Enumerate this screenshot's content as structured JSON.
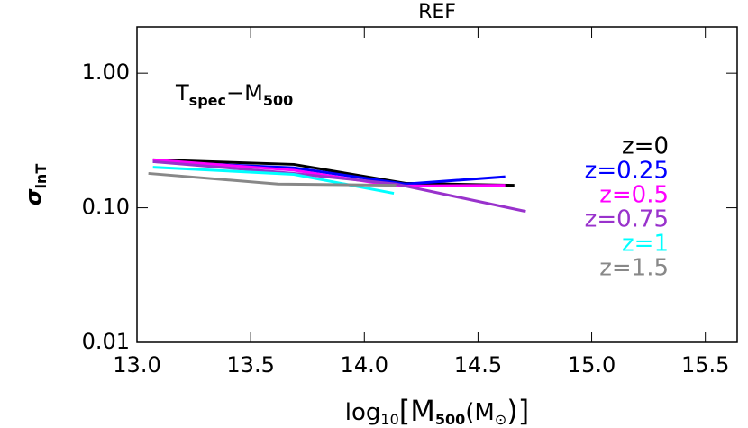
{
  "chart_data": {
    "type": "line",
    "title": "REF",
    "annotation": {
      "main": "T",
      "sub": "spec",
      "rest": "−M",
      "sub2": "500"
    },
    "ylabel": {
      "main": "σ",
      "sub": "lnT"
    },
    "xlabel": {
      "a": "log",
      "b": "10",
      "c": "[M",
      "d": "500",
      "e": "(M",
      "f": "⊙",
      "g": ")]"
    },
    "xlim": [
      13.0,
      15.64
    ],
    "ylim": [
      0.01,
      2.2
    ],
    "log_y": true,
    "xticks": [
      {
        "value": 13.0,
        "label": "13.0"
      },
      {
        "value": 13.5,
        "label": "13.5"
      },
      {
        "value": 14.0,
        "label": "14.0"
      },
      {
        "value": 14.5,
        "label": "14.5"
      },
      {
        "value": 15.0,
        "label": "15.0"
      },
      {
        "value": 15.5,
        "label": "15.5"
      }
    ],
    "yticks": [
      {
        "value": 0.01,
        "label": "0.01"
      },
      {
        "value": 0.1,
        "label": "0.10"
      },
      {
        "value": 1,
        "label": "1.00"
      }
    ],
    "series": [
      {
        "name": "z=0",
        "color": "#000000",
        "x": [
          13.07,
          13.69,
          14.18,
          14.66
        ],
        "values": [
          0.227,
          0.21,
          0.152,
          0.147
        ]
      },
      {
        "name": "z=0.25",
        "color": "#0000ff",
        "x": [
          13.07,
          13.69,
          14.18,
          14.62
        ],
        "values": [
          0.22,
          0.198,
          0.15,
          0.17
        ]
      },
      {
        "name": "z=0.5",
        "color": "#ff00ff",
        "x": [
          13.07,
          13.69,
          14.14,
          14.62
        ],
        "values": [
          0.227,
          0.19,
          0.145,
          0.147
        ]
      },
      {
        "name": "z=0.75",
        "color": "#9932cc",
        "x": [
          13.07,
          13.69,
          14.14,
          14.71
        ],
        "values": [
          0.22,
          0.18,
          0.15,
          0.094
        ]
      },
      {
        "name": "z=1",
        "color": "#00ffff",
        "x": [
          13.07,
          13.69,
          14.13
        ],
        "values": [
          0.2,
          0.177,
          0.128
        ]
      },
      {
        "name": "z=1.5",
        "color": "#888888",
        "x": [
          13.05,
          13.62,
          14.14
        ],
        "values": [
          0.18,
          0.15,
          0.147
        ]
      }
    ]
  }
}
